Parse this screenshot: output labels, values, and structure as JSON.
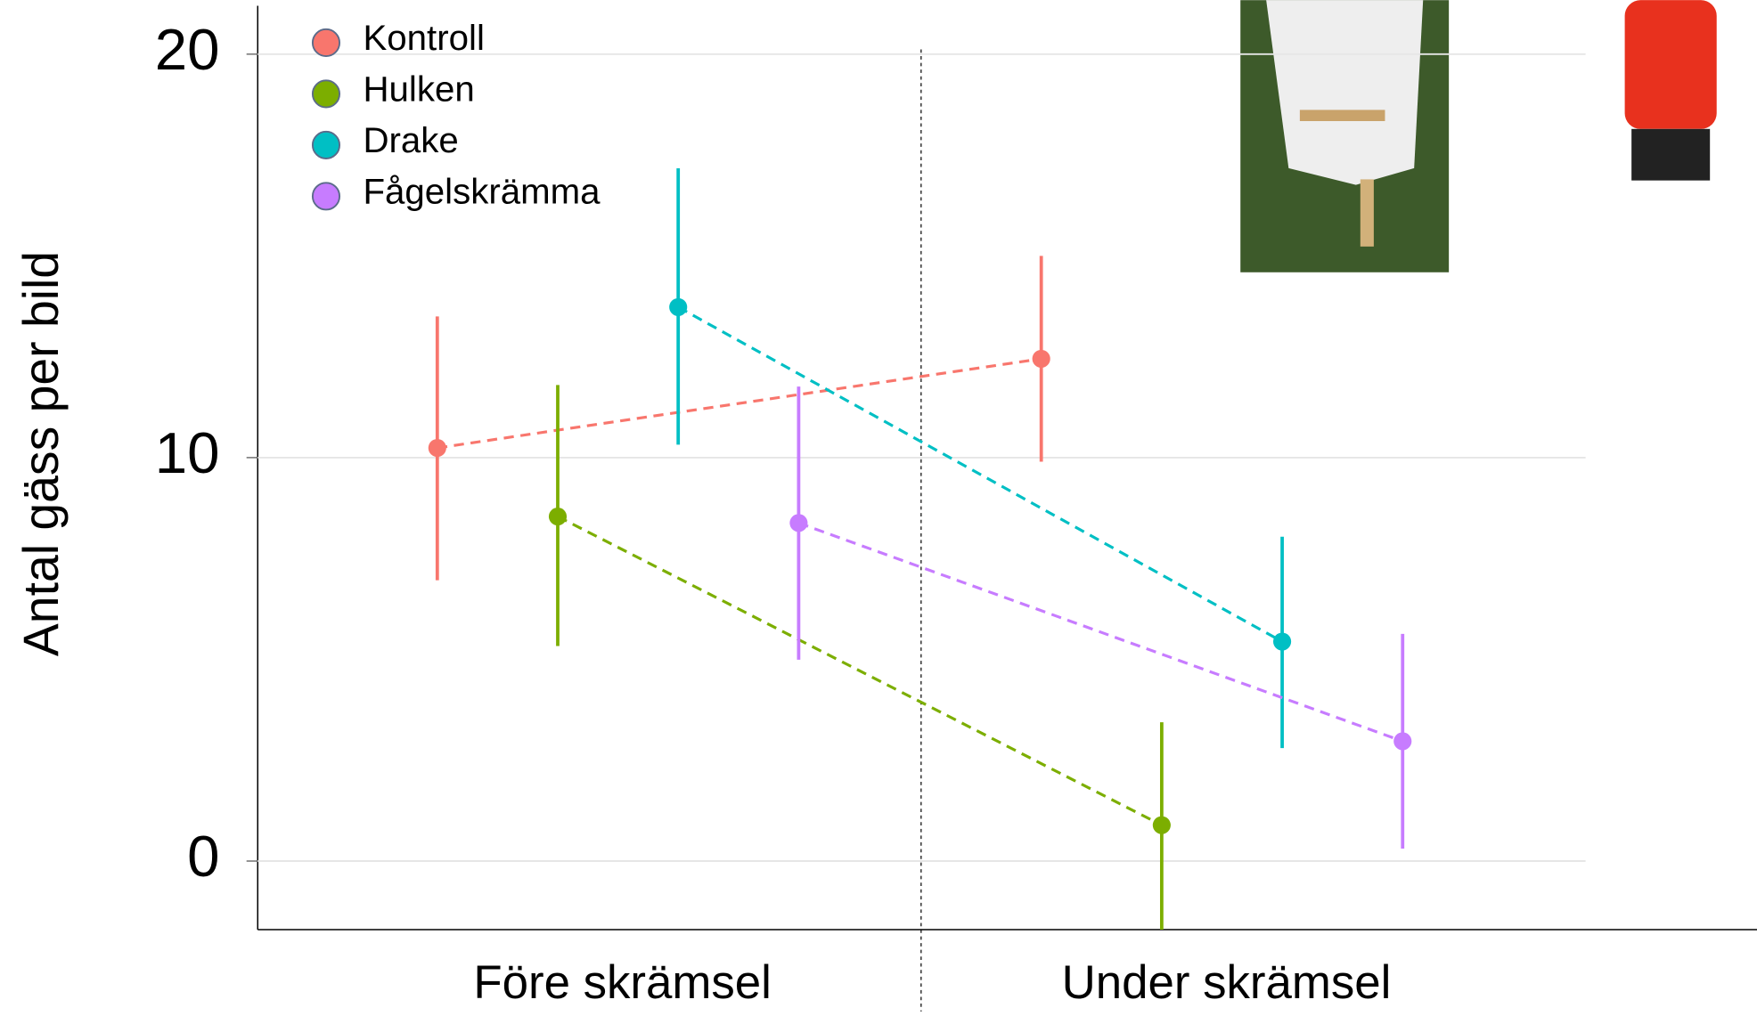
{
  "chart_data": {
    "type": "errorbar",
    "y_label": "Antal gäss per bild",
    "categories": [
      "Före skrämsel",
      "Under skrämsel"
    ],
    "series": [
      {
        "name": "Kontroll",
        "color": "#f8766d",
        "values": [
          10.24,
          12.45
        ],
        "lower": [
          6.96,
          9.9
        ],
        "upper": [
          13.5,
          15.0
        ]
      },
      {
        "name": "Hulken",
        "color": "#7cae00",
        "values": [
          8.54,
          0.89
        ],
        "lower": [
          5.33,
          -1.7
        ],
        "upper": [
          11.8,
          3.44
        ]
      },
      {
        "name": "Drake",
        "color": "#00bfc4",
        "values": [
          13.73,
          5.44
        ],
        "lower": [
          10.32,
          2.8
        ],
        "upper": [
          17.17,
          8.04
        ]
      },
      {
        "name": "Fågelskrämma",
        "color": "#c77cff",
        "values": [
          8.38,
          2.97
        ],
        "lower": [
          4.99,
          0.31
        ],
        "upper": [
          11.76,
          5.63
        ]
      }
    ],
    "ylim": [
      -1.7,
      21.2
    ],
    "yticks": [
      0,
      10,
      20
    ],
    "grid": true,
    "legend": "top-left"
  }
}
